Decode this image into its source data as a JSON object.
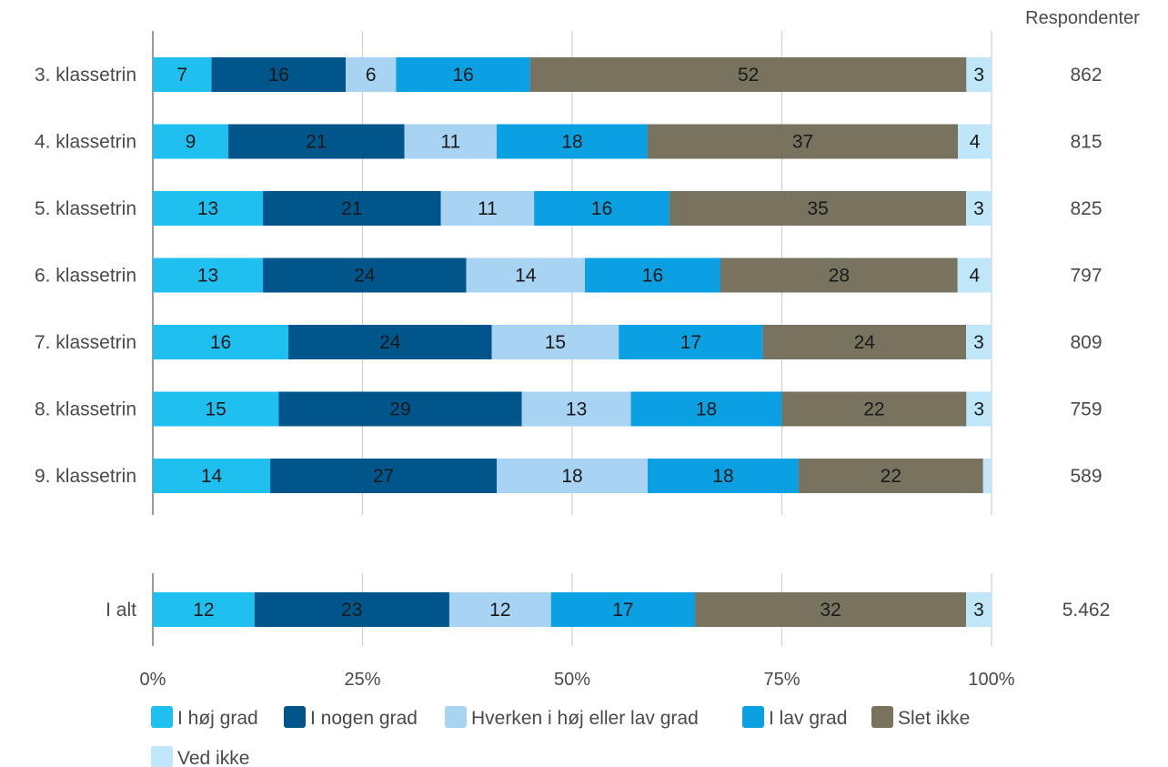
{
  "chart_data": {
    "type": "bar",
    "orientation": "horizontal",
    "stacked": "percent",
    "respondents_header": "Respondenter",
    "xlim": [
      0,
      100
    ],
    "x_ticks": [
      "0%",
      "25%",
      "50%",
      "75%",
      "100%"
    ],
    "grid": true,
    "legend_position": "bottom",
    "series": [
      {
        "name": "I høj grad",
        "color": "#1fc0f0"
      },
      {
        "name": "I nogen grad",
        "color": "#00568b"
      },
      {
        "name": "Hverken i høj eller lav grad",
        "color": "#a8d3f2"
      },
      {
        "name": "I lav grad",
        "color": "#0aa0e2"
      },
      {
        "name": "Slet ikke",
        "color": "#77735f"
      },
      {
        "name": "Ved ikke",
        "color": "#bfe6f9"
      }
    ],
    "groups": [
      {
        "rows": [
          {
            "category": "3. klassetrin",
            "values": [
              7,
              16,
              6,
              16,
              52,
              3
            ],
            "respondents": "862"
          },
          {
            "category": "4. klassetrin",
            "values": [
              9,
              21,
              11,
              18,
              37,
              4
            ],
            "respondents": "815"
          },
          {
            "category": "5. klassetrin",
            "values": [
              13,
              21,
              11,
              16,
              35,
              3
            ],
            "respondents": "825"
          },
          {
            "category": "6. klassetrin",
            "values": [
              13,
              24,
              14,
              16,
              28,
              4
            ],
            "respondents": "797"
          },
          {
            "category": "7. klassetrin",
            "values": [
              16,
              24,
              15,
              17,
              24,
              3
            ],
            "respondents": "809"
          },
          {
            "category": "8. klassetrin",
            "values": [
              15,
              29,
              13,
              18,
              22,
              3
            ],
            "respondents": "759"
          },
          {
            "category": "9. klassetrin",
            "values": [
              14,
              27,
              18,
              18,
              22,
              1
            ],
            "respondents": "589",
            "hide_label_last": true
          }
        ]
      },
      {
        "rows": [
          {
            "category": "I alt",
            "values": [
              12,
              23,
              12,
              17,
              32,
              3
            ],
            "respondents": "5.462"
          }
        ]
      }
    ]
  }
}
